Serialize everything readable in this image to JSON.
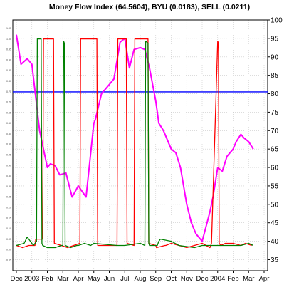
{
  "chart_data": {
    "type": "line",
    "title": "Money Flow Index (64.5604), BYU (0.0183), SELL (0.0211)",
    "x_labels": [
      "Dec",
      "2003",
      "Feb",
      "Mar",
      "Apr",
      "May",
      "Jun",
      "Jul",
      "Aug",
      "Sep",
      "Oct",
      "Nov",
      "Dec",
      "2004",
      "Feb",
      "Mar",
      "Apr"
    ],
    "y_right": {
      "min": 32,
      "max": 100,
      "ticks": [
        35,
        40,
        45,
        50,
        55,
        60,
        65,
        70,
        75,
        80,
        85,
        90,
        95,
        100
      ]
    },
    "y_left": {
      "min": -0.1,
      "max": 1.09,
      "ticks": [
        "-0.05",
        "0.00",
        "0.05",
        "0.10",
        "0.15",
        "0.20",
        "0.25",
        "0.30",
        "0.35",
        "0.40",
        "0.45",
        "0.50",
        "0.55",
        "0.60",
        "0.65",
        "0.70",
        "0.75",
        "0.80",
        "0.85",
        "0.90",
        "0.95",
        "1.00",
        "1.05"
      ]
    },
    "reference_line": {
      "value": 80.5,
      "axis": "right",
      "color": "#0000ff"
    },
    "grid": true,
    "series": [
      {
        "axis": "right",
        "color": "#ff00ff",
        "x": [
          0,
          0.3,
          0.7,
          1.0,
          1.5,
          2.0,
          2.2,
          2.5,
          2.8,
          3.2,
          3.6,
          4.0,
          4.5,
          5.0,
          5.1,
          5.5,
          5.8,
          6.0,
          6.3,
          6.7,
          7.0,
          7.3,
          7.6,
          8.0,
          8.3,
          8.6,
          9.0,
          9.2,
          9.5,
          10.0,
          10.3,
          10.6,
          11.0,
          11.3,
          11.6,
          12.0,
          12.5,
          12.7,
          13.0,
          13.3,
          13.6,
          14.0,
          14.2,
          14.5,
          14.7,
          15.0,
          15.3
        ],
        "values": [
          96,
          88,
          89.5,
          88,
          70,
          60,
          61,
          60.5,
          58,
          58.5,
          52,
          55,
          52,
          72,
          73,
          80,
          81.5,
          82.5,
          84,
          94,
          95,
          87,
          92,
          92.5,
          92,
          87,
          78,
          72,
          70,
          65,
          64,
          60,
          50,
          45,
          42,
          40,
          48,
          52,
          60,
          59,
          63,
          65,
          67,
          69,
          68,
          67,
          65
        ]
      },
      {
        "axis": "left",
        "color": "#ff0000",
        "x": [
          0,
          0.4,
          0.8,
          1.2,
          1.25,
          1.7,
          1.75,
          2.2,
          2.4,
          2.45,
          2.9,
          3.3,
          3.7,
          4.1,
          4.15,
          5.2,
          5.25,
          6.4,
          6.5,
          6.55,
          7.0,
          7.1,
          7.15,
          7.6,
          7.65,
          8.4,
          8.5,
          8.55,
          9.0,
          9.05,
          9.6,
          9.65,
          10.0,
          10.5,
          11.0,
          11.5,
          12.0,
          12.5,
          12.6,
          13.0,
          13.05,
          13.1,
          13.2,
          13.5,
          14.0,
          14.5,
          14.8,
          15.2
        ],
        "values": [
          0.02,
          0.01,
          0.02,
          0.02,
          0.05,
          0.05,
          1.0,
          1.0,
          1.0,
          0.03,
          0.02,
          0.01,
          0.02,
          0.03,
          1.0,
          1.0,
          0.02,
          0.02,
          0.02,
          1.0,
          1.0,
          1.0,
          0.03,
          0.02,
          1.0,
          1.0,
          1.0,
          0.03,
          0.02,
          0.01,
          0.02,
          0.02,
          0.03,
          0.02,
          0.01,
          0.02,
          0.03,
          0.01,
          0.03,
          0.99,
          0.98,
          0.03,
          0.02,
          0.03,
          0.03,
          0.02,
          0.03,
          0.02
        ]
      },
      {
        "axis": "left",
        "color": "#008000",
        "x": [
          0,
          0.5,
          0.7,
          1.0,
          1.1,
          1.3,
          1.35,
          1.6,
          1.65,
          1.7,
          2.0,
          2.5,
          2.9,
          3.0,
          3.05,
          3.1,
          3.15,
          3.5,
          3.9,
          4.0,
          4.4,
          4.8,
          5.0,
          6.5,
          7.0,
          8.0,
          8.3,
          8.35,
          8.5,
          8.55,
          8.6,
          8.7,
          9.1,
          9.2,
          9.3,
          10.0,
          10.5,
          11.5,
          12.0,
          13.0,
          14.0,
          14.5,
          15.0,
          15.3
        ],
        "values": [
          0.02,
          0.03,
          0.06,
          0.03,
          0.02,
          0.04,
          1.0,
          1.0,
          0.03,
          0.02,
          0.01,
          0.01,
          0.02,
          0.02,
          0.99,
          0.98,
          0.02,
          0.01,
          0.02,
          0.02,
          0.03,
          0.02,
          0.03,
          0.02,
          0.02,
          0.03,
          0.02,
          0.99,
          0.98,
          0.03,
          0.02,
          0.02,
          0.02,
          0.04,
          0.05,
          0.04,
          0.02,
          0.01,
          0.02,
          0.02,
          0.02,
          0.02,
          0.03,
          0.02
        ]
      }
    ]
  }
}
